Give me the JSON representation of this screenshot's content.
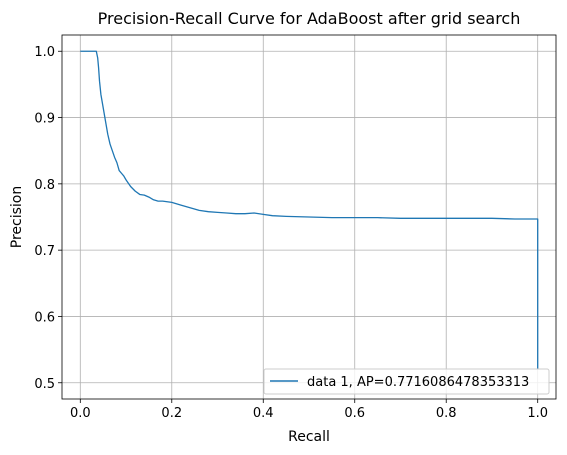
{
  "chart_data": {
    "type": "line",
    "title": "Precision-Recall Curve for AdaBoost after grid search",
    "xlabel": "Recall",
    "ylabel": "Precision",
    "xlim": [
      -0.04,
      1.04
    ],
    "ylim": [
      0.4755,
      1.0245
    ],
    "xticks": [
      0.0,
      0.2,
      0.4,
      0.6,
      0.8,
      1.0
    ],
    "xtick_labels": [
      "0.0",
      "0.2",
      "0.4",
      "0.6",
      "0.8",
      "1.0"
    ],
    "yticks": [
      0.5,
      0.6,
      0.7,
      0.8,
      0.9,
      1.0
    ],
    "ytick_labels": [
      "0.5",
      "0.6",
      "0.7",
      "0.8",
      "0.9",
      "1.0"
    ],
    "grid": true,
    "legend_position": "lower-right",
    "series": [
      {
        "name": "data 1, AP=0.7716086478353313",
        "color": "#1f77b4",
        "x": [
          0.0,
          0.035,
          0.038,
          0.04,
          0.042,
          0.045,
          0.05,
          0.055,
          0.06,
          0.065,
          0.07,
          0.075,
          0.08,
          0.085,
          0.09,
          0.095,
          0.1,
          0.11,
          0.12,
          0.13,
          0.14,
          0.15,
          0.16,
          0.17,
          0.18,
          0.2,
          0.22,
          0.24,
          0.26,
          0.28,
          0.3,
          0.32,
          0.34,
          0.36,
          0.38,
          0.4,
          0.42,
          0.45,
          0.5,
          0.55,
          0.6,
          0.65,
          0.7,
          0.75,
          0.8,
          0.85,
          0.9,
          0.95,
          0.98,
          1.0,
          1.0
        ],
        "y": [
          1.0,
          1.0,
          0.99,
          0.975,
          0.955,
          0.935,
          0.915,
          0.895,
          0.875,
          0.86,
          0.85,
          0.84,
          0.832,
          0.82,
          0.816,
          0.812,
          0.806,
          0.796,
          0.789,
          0.784,
          0.783,
          0.78,
          0.776,
          0.774,
          0.774,
          0.772,
          0.768,
          0.764,
          0.76,
          0.758,
          0.757,
          0.756,
          0.755,
          0.755,
          0.756,
          0.754,
          0.752,
          0.751,
          0.75,
          0.749,
          0.749,
          0.749,
          0.748,
          0.748,
          0.748,
          0.748,
          0.748,
          0.747,
          0.747,
          0.747,
          0.52
        ]
      }
    ]
  }
}
